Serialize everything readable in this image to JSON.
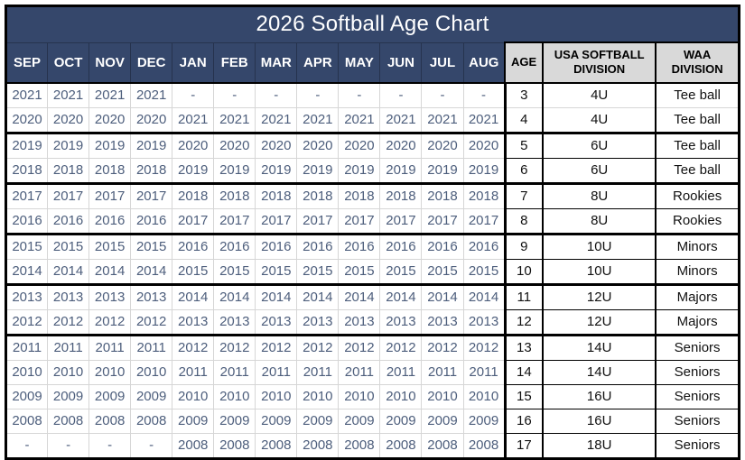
{
  "title": "2026 Softball Age Chart",
  "columns": {
    "months": [
      "SEP",
      "OCT",
      "NOV",
      "DEC",
      "JAN",
      "FEB",
      "MAR",
      "APR",
      "MAY",
      "JUN",
      "JUL",
      "AUG"
    ],
    "age_label": "AGE",
    "usa_label": "USA SOFTBALL DIVISION",
    "waa_label": "WAA DIVISION"
  },
  "rows": [
    {
      "months": [
        "2021",
        "2021",
        "2021",
        "2021",
        "-",
        "-",
        "-",
        "-",
        "-",
        "-",
        "-",
        "-"
      ],
      "age": "3",
      "usa_division": "4U",
      "waa_division": "Tee ball"
    },
    {
      "months": [
        "2020",
        "2020",
        "2020",
        "2020",
        "2021",
        "2021",
        "2021",
        "2021",
        "2021",
        "2021",
        "2021",
        "2021"
      ],
      "age": "4",
      "usa_division": "4U",
      "waa_division": "Tee ball"
    },
    {
      "months": [
        "2019",
        "2019",
        "2019",
        "2019",
        "2020",
        "2020",
        "2020",
        "2020",
        "2020",
        "2020",
        "2020",
        "2020"
      ],
      "age": "5",
      "usa_division": "6U",
      "waa_division": "Tee ball"
    },
    {
      "months": [
        "2018",
        "2018",
        "2018",
        "2018",
        "2019",
        "2019",
        "2019",
        "2019",
        "2019",
        "2019",
        "2019",
        "2019"
      ],
      "age": "6",
      "usa_division": "6U",
      "waa_division": "Tee ball"
    },
    {
      "months": [
        "2017",
        "2017",
        "2017",
        "2017",
        "2018",
        "2018",
        "2018",
        "2018",
        "2018",
        "2018",
        "2018",
        "2018"
      ],
      "age": "7",
      "usa_division": "8U",
      "waa_division": "Rookies"
    },
    {
      "months": [
        "2016",
        "2016",
        "2016",
        "2016",
        "2017",
        "2017",
        "2017",
        "2017",
        "2017",
        "2017",
        "2017",
        "2017"
      ],
      "age": "8",
      "usa_division": "8U",
      "waa_division": "Rookies"
    },
    {
      "months": [
        "2015",
        "2015",
        "2015",
        "2015",
        "2016",
        "2016",
        "2016",
        "2016",
        "2016",
        "2016",
        "2016",
        "2016"
      ],
      "age": "9",
      "usa_division": "10U",
      "waa_division": "Minors"
    },
    {
      "months": [
        "2014",
        "2014",
        "2014",
        "2014",
        "2015",
        "2015",
        "2015",
        "2015",
        "2015",
        "2015",
        "2015",
        "2015"
      ],
      "age": "10",
      "usa_division": "10U",
      "waa_division": "Minors"
    },
    {
      "months": [
        "2013",
        "2013",
        "2013",
        "2013",
        "2014",
        "2014",
        "2014",
        "2014",
        "2014",
        "2014",
        "2014",
        "2014"
      ],
      "age": "11",
      "usa_division": "12U",
      "waa_division": "Majors"
    },
    {
      "months": [
        "2012",
        "2012",
        "2012",
        "2012",
        "2013",
        "2013",
        "2013",
        "2013",
        "2013",
        "2013",
        "2013",
        "2013"
      ],
      "age": "12",
      "usa_division": "12U",
      "waa_division": "Majors"
    },
    {
      "months": [
        "2011",
        "2011",
        "2011",
        "2011",
        "2012",
        "2012",
        "2012",
        "2012",
        "2012",
        "2012",
        "2012",
        "2012"
      ],
      "age": "13",
      "usa_division": "14U",
      "waa_division": "Seniors"
    },
    {
      "months": [
        "2010",
        "2010",
        "2010",
        "2010",
        "2011",
        "2011",
        "2011",
        "2011",
        "2011",
        "2011",
        "2011",
        "2011"
      ],
      "age": "14",
      "usa_division": "14U",
      "waa_division": "Seniors"
    },
    {
      "months": [
        "2009",
        "2009",
        "2009",
        "2009",
        "2010",
        "2010",
        "2010",
        "2010",
        "2010",
        "2010",
        "2010",
        "2010"
      ],
      "age": "15",
      "usa_division": "16U",
      "waa_division": "Seniors"
    },
    {
      "months": [
        "2008",
        "2008",
        "2008",
        "2008",
        "2009",
        "2009",
        "2009",
        "2009",
        "2009",
        "2009",
        "2009",
        "2009"
      ],
      "age": "16",
      "usa_division": "16U",
      "waa_division": "Seniors"
    },
    {
      "months": [
        "-",
        "-",
        "-",
        "-",
        "2008",
        "2008",
        "2008",
        "2008",
        "2008",
        "2008",
        "2008",
        "2008"
      ],
      "age": "17",
      "usa_division": "18U",
      "waa_division": "Seniors"
    }
  ],
  "group_end_ages": [
    "4",
    "6",
    "8",
    "10",
    "12"
  ],
  "light_right_separator_ages": [
    "3"
  ],
  "colors": {
    "header_bg": "#35476B",
    "header_divider": "#26334E",
    "title_text": "#FFFFFF",
    "year_text": "#4D5E7C",
    "right_header_bg": "#D9D9D9",
    "border_black": "#000000",
    "border_light": "#D6D6D6"
  }
}
